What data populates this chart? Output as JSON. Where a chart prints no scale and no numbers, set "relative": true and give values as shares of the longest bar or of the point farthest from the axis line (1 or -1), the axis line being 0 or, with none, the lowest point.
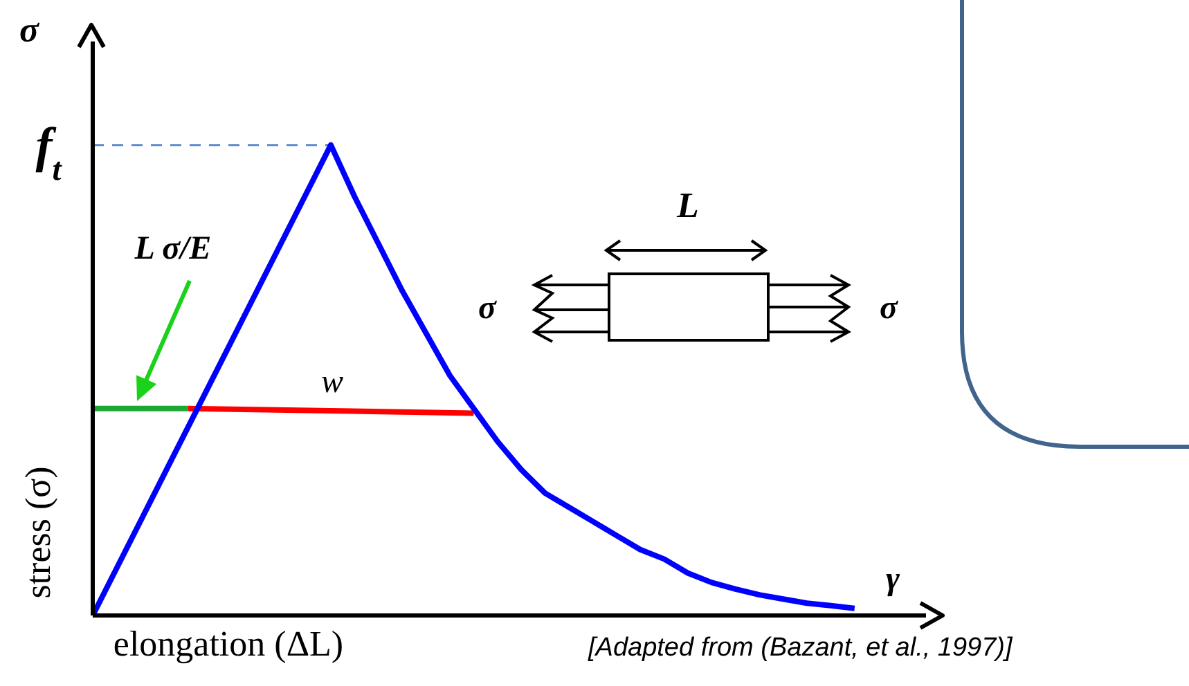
{
  "chart_data": {
    "type": "line",
    "relative": true,
    "xlabel": "elongation (ΔL)",
    "ylabel": "stress (σ)",
    "categories": [
      null,
      null,
      null,
      null,
      null,
      null,
      null,
      null,
      null,
      null,
      null,
      null,
      null,
      null,
      null,
      null,
      null,
      null,
      null,
      null,
      null,
      null,
      null,
      null,
      null,
      null,
      null,
      null,
      null,
      null,
      null,
      null,
      null,
      null,
      null,
      null
    ],
    "series": [
      {
        "color": "#5b8bd0",
        "line_style": "dashed",
        "values": [
          1,
          1,
          1,
          1,
          1,
          1,
          1,
          1,
          1,
          1,
          1,
          null,
          null,
          null,
          null,
          null,
          null,
          null,
          null,
          null,
          null,
          null,
          null,
          null,
          null,
          null,
          null,
          null,
          null,
          null,
          null,
          null,
          null,
          null,
          null,
          null
        ]
      },
      {
        "color": "#1aa832",
        "values": [
          0.44,
          0.44,
          0.44,
          0.44,
          0.44,
          null,
          null,
          null,
          null,
          null,
          null,
          null,
          null,
          null,
          null,
          null,
          null,
          null,
          null,
          null,
          null,
          null,
          null,
          null,
          null,
          null,
          null,
          null,
          null,
          null,
          null,
          null,
          null,
          null,
          null,
          null
        ]
      },
      {
        "color": "#ff0000",
        "values": [
          null,
          null,
          null,
          null,
          0.44,
          null,
          null,
          null,
          null,
          null,
          null,
          null,
          null,
          null,
          null,
          null,
          0.43,
          null,
          null,
          null,
          null,
          null,
          null,
          null,
          null,
          null,
          null,
          null,
          null,
          null,
          null,
          null,
          null,
          null,
          null,
          null
        ]
      },
      {
        "color": "#0000ff",
        "values": [
          0,
          0.1,
          0.2,
          0.3,
          0.4,
          0.5,
          0.6,
          0.7,
          0.8,
          0.9,
          1,
          0.89,
          0.79,
          0.69,
          0.6,
          0.51,
          0.44,
          0.37,
          0.31,
          0.26,
          0.23,
          0.2,
          0.17,
          0.14,
          0.12,
          0.09,
          0.07,
          0.056,
          0.044,
          0.035,
          0.026,
          0.021,
          0.015,
          null,
          null,
          null
        ]
      }
    ],
    "annotations": [
      "σ",
      "f$_{t}$",
      "L σ/E",
      {
        "text": "w",
        "y": 0.44
      },
      "L",
      "σ",
      "σ",
      "γ",
      "[Adapted from (Bazant, et al., 1997)]"
    ]
  }
}
